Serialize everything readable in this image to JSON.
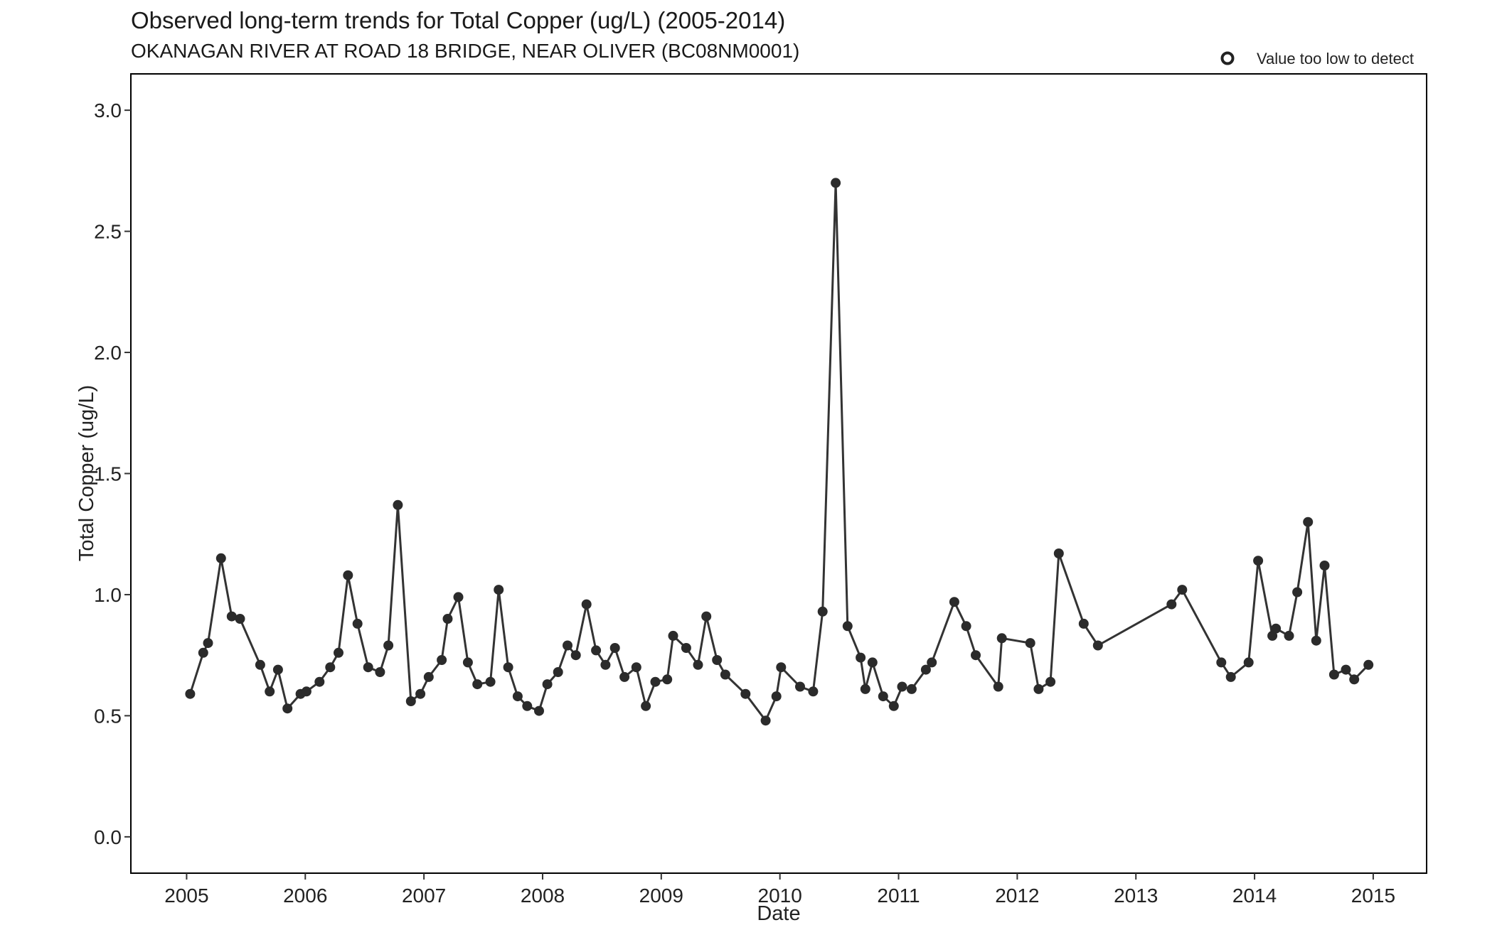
{
  "chart_data": {
    "type": "line",
    "title": "Observed long-term trends for Total Copper (ug/L) (2005-2014)",
    "subtitle": "OKANAGAN RIVER AT ROAD 18 BRIDGE, NEAR OLIVER (BC08NM0001)",
    "xlabel": "Date",
    "ylabel": "Total Copper (ug/L)",
    "xlim": [
      2004.53,
      2015.45
    ],
    "ylim": [
      -0.15,
      3.15
    ],
    "x_ticks": [
      "2005",
      "2006",
      "2007",
      "2008",
      "2009",
      "2010",
      "2011",
      "2012",
      "2013",
      "2014",
      "2015"
    ],
    "y_ticks": [
      "0.0",
      "0.5",
      "1.0",
      "1.5",
      "2.0",
      "2.5",
      "3.0"
    ],
    "grid": false,
    "legend": {
      "position": "top-right",
      "entries": [
        {
          "label": "Value too low to detect",
          "marker": "open-circle"
        }
      ]
    },
    "colors": {
      "line": "#333333",
      "point": "#2b2b2b",
      "frame": "#000000"
    },
    "series": [
      {
        "x": [
          2005.03,
          2005.14,
          2005.18,
          2005.29,
          2005.38,
          2005.45,
          2005.62,
          2005.7,
          2005.77,
          2005.85,
          2005.96,
          2006.01,
          2006.12,
          2006.21,
          2006.28,
          2006.36,
          2006.44,
          2006.53,
          2006.63,
          2006.7,
          2006.78,
          2006.89,
          2006.97,
          2007.04,
          2007.15,
          2007.2,
          2007.29,
          2007.37,
          2007.45,
          2007.56,
          2007.63,
          2007.71,
          2007.79,
          2007.87,
          2007.97,
          2008.04,
          2008.13,
          2008.21,
          2008.28,
          2008.37,
          2008.45,
          2008.53,
          2008.61,
          2008.69,
          2008.79,
          2008.87,
          2008.95,
          2009.05,
          2009.1,
          2009.21,
          2009.31,
          2009.38,
          2009.47,
          2009.54,
          2009.71,
          2009.88,
          2009.97,
          2010.01,
          2010.17,
          2010.28,
          2010.36,
          2010.47,
          2010.57,
          2010.68,
          2010.72,
          2010.78,
          2010.87,
          2010.96,
          2011.03,
          2011.11,
          2011.23,
          2011.28,
          2011.47,
          2011.57,
          2011.65,
          2011.84,
          2011.87,
          2012.11,
          2012.18,
          2012.28,
          2012.35,
          2012.56,
          2012.68,
          2013.3,
          2013.39,
          2013.72,
          2013.8,
          2013.95,
          2014.03,
          2014.15,
          2014.18,
          2014.29,
          2014.36,
          2014.45,
          2014.52,
          2014.59,
          2014.67,
          2014.77,
          2014.84,
          2014.96
        ],
        "y": [
          0.59,
          0.76,
          0.8,
          1.15,
          0.91,
          0.9,
          0.71,
          0.6,
          0.69,
          0.53,
          0.59,
          0.6,
          0.64,
          0.7,
          0.76,
          1.08,
          0.88,
          0.7,
          0.68,
          0.79,
          1.37,
          0.56,
          0.59,
          0.66,
          0.73,
          0.9,
          0.99,
          0.72,
          0.63,
          0.64,
          1.02,
          0.7,
          0.58,
          0.54,
          0.52,
          0.63,
          0.68,
          0.79,
          0.75,
          0.96,
          0.77,
          0.71,
          0.78,
          0.66,
          0.7,
          0.54,
          0.64,
          0.65,
          0.83,
          0.78,
          0.71,
          0.91,
          0.73,
          0.67,
          0.59,
          0.48,
          0.58,
          0.7,
          0.62,
          0.6,
          0.93,
          2.7,
          0.87,
          0.74,
          0.61,
          0.72,
          0.58,
          0.54,
          0.62,
          0.61,
          0.69,
          0.72,
          0.97,
          0.87,
          0.75,
          0.62,
          0.82,
          0.8,
          0.61,
          0.64,
          1.17,
          0.88,
          0.79,
          0.96,
          1.02,
          0.72,
          0.66,
          0.72,
          1.14,
          0.83,
          0.86,
          0.83,
          1.01,
          1.3,
          0.81,
          1.12,
          0.67,
          0.69,
          0.65,
          0.71
        ]
      }
    ]
  }
}
